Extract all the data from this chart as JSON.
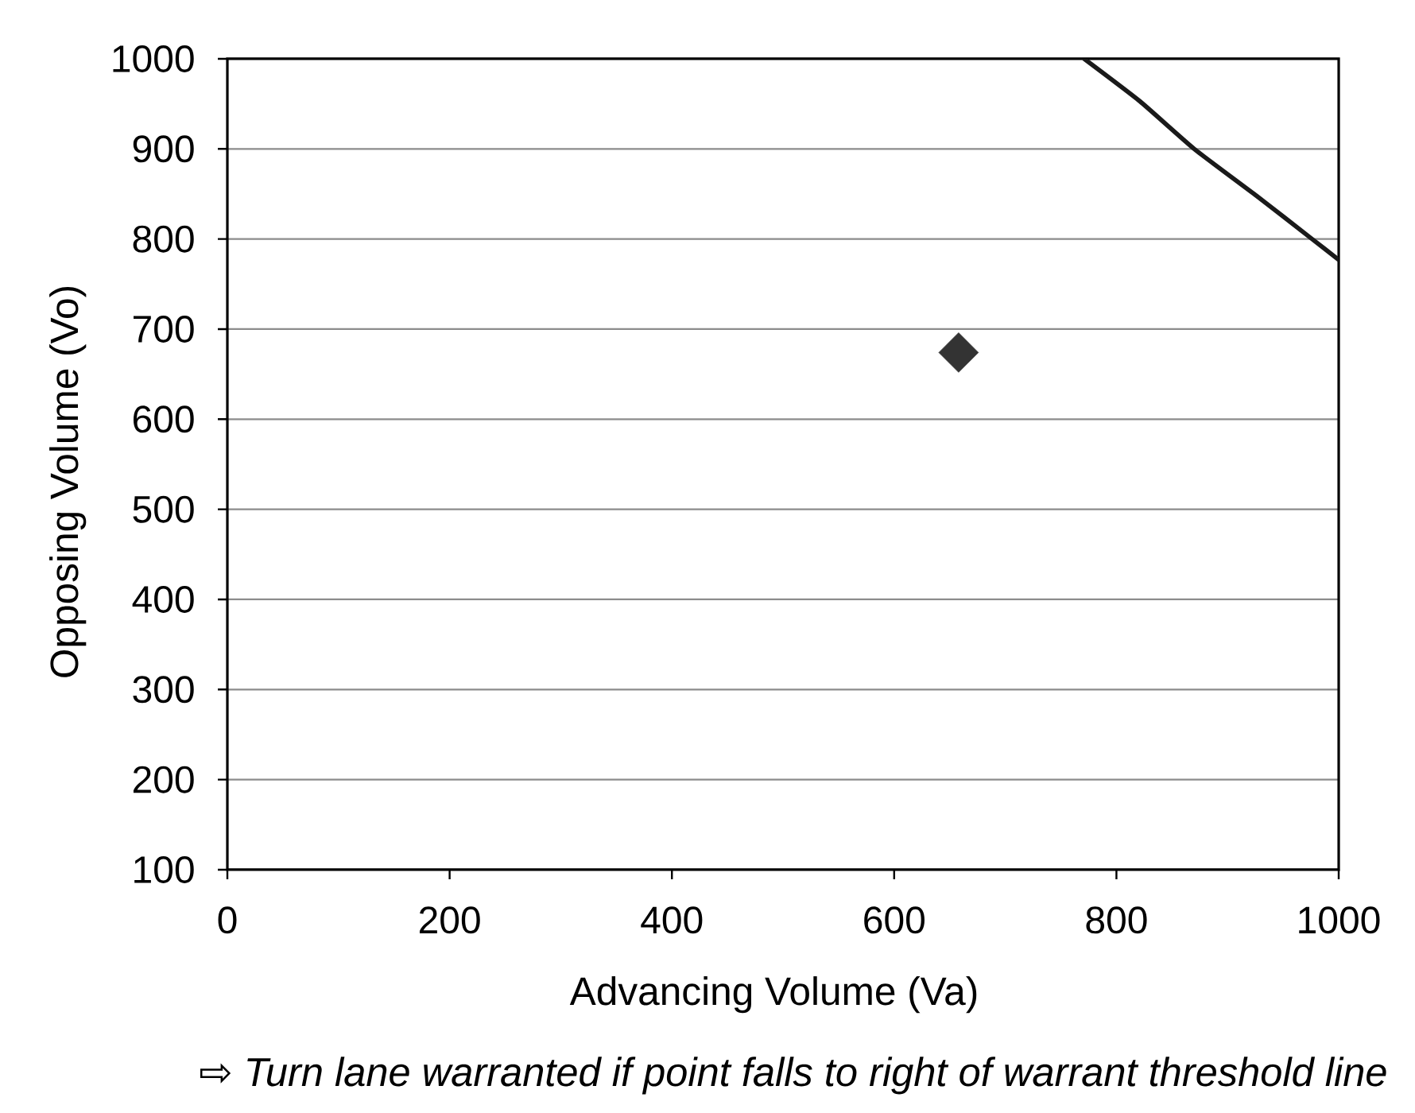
{
  "chart_data": {
    "type": "scatter",
    "xlabel": "Advancing Volume (Va)",
    "ylabel": "Opposing Volume (Vo)",
    "annotations": [
      "⇨ Turn lane warranted if point falls to right of warrant threshold line"
    ],
    "xlim": [
      0,
      1000
    ],
    "ylim": [
      100,
      1000
    ],
    "xticks": [
      0,
      200,
      400,
      600,
      800,
      1000
    ],
    "yticks": [
      100,
      200,
      300,
      400,
      500,
      600,
      700,
      800,
      900,
      1000
    ],
    "grid": "y",
    "series": [
      {
        "color": "#333333",
        "marker": "diamond",
        "x": [
          658
        ],
        "values": [
          674
        ]
      },
      {
        "type": "line",
        "color": "#1a1a1a",
        "marker": "none",
        "line_style": "solid",
        "x": [
          771,
          821,
          870,
          926,
          976,
          1000
        ],
        "values": [
          1000,
          953,
          900,
          848,
          800,
          777
        ]
      }
    ]
  }
}
